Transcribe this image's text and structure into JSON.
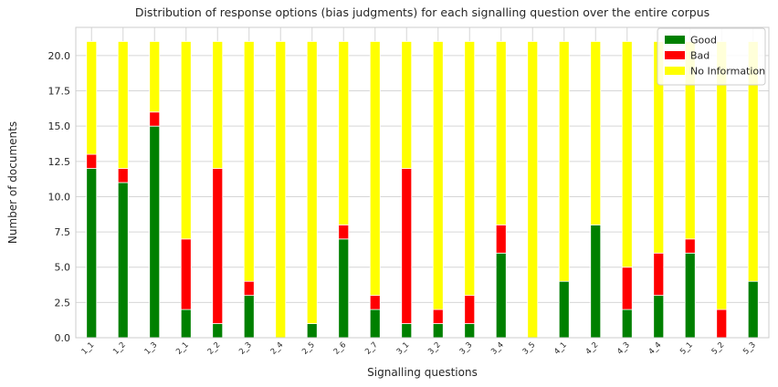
{
  "chart_data": {
    "type": "bar",
    "stacked": true,
    "title": "Distribution of response options (bias judgments) for each signalling question over the entire corpus",
    "xlabel": "Signalling questions",
    "ylabel": "Number of documents",
    "ylim": [
      0,
      22
    ],
    "yticks": [
      0.0,
      2.5,
      5.0,
      7.5,
      10.0,
      12.5,
      15.0,
      17.5,
      20.0
    ],
    "ytick_labels": [
      "0.0",
      "2.5",
      "5.0",
      "7.5",
      "10.0",
      "12.5",
      "15.0",
      "17.5",
      "20.0"
    ],
    "grid": true,
    "legend_position": "top-right",
    "categories": [
      "1_1",
      "1_2",
      "1_3",
      "2_1",
      "2_2",
      "2_3",
      "2_4",
      "2_5",
      "2_6",
      "2_7",
      "3_1",
      "3_2",
      "3_3",
      "3_4",
      "3_5",
      "4_1",
      "4_2",
      "4_3",
      "4_4",
      "5_1",
      "5_2",
      "5_3"
    ],
    "series": [
      {
        "name": "Good",
        "color": "#008000",
        "values": [
          12,
          11,
          15,
          2,
          1,
          3,
          0,
          1,
          7,
          2,
          1,
          1,
          1,
          6,
          0,
          4,
          8,
          2,
          3,
          6,
          0,
          4
        ]
      },
      {
        "name": "Bad",
        "color": "#ff0000",
        "values": [
          1,
          1,
          1,
          5,
          11,
          1,
          0,
          0,
          1,
          1,
          11,
          1,
          2,
          2,
          0,
          0,
          0,
          3,
          3,
          1,
          2,
          0
        ]
      },
      {
        "name": "No Information",
        "color": "#ffff00",
        "values": [
          8,
          9,
          5,
          14,
          9,
          17,
          21,
          20,
          13,
          18,
          9,
          19,
          18,
          13,
          21,
          17,
          13,
          16,
          15,
          14,
          19,
          17
        ]
      }
    ]
  }
}
